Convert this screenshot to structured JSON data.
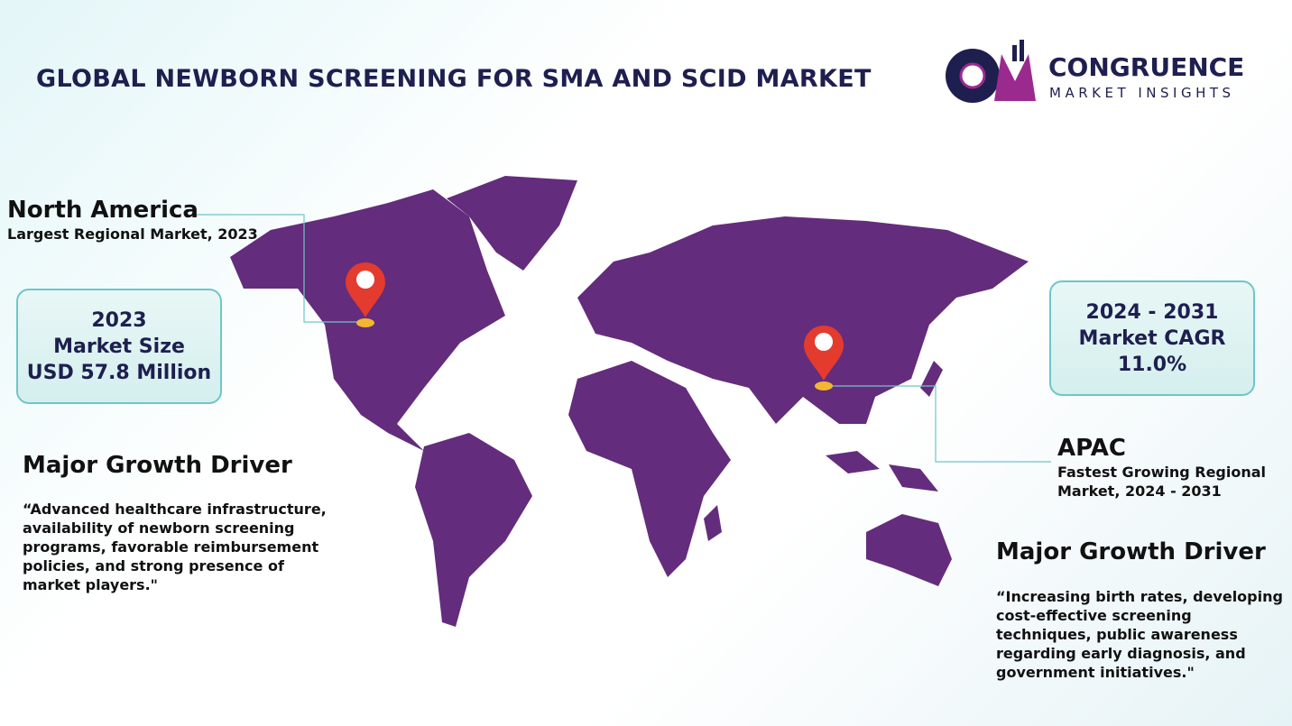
{
  "header": {
    "title": "GLOBAL NEWBORN SCREENING FOR SMA AND SCID MARKET",
    "logo_name": "CONGRUENCE",
    "logo_tagline": "MARKET INSIGHTS"
  },
  "north_america": {
    "region": "North America",
    "note": "Largest Regional Market, 2023"
  },
  "market_size": {
    "year": "2023",
    "label": "Market Size",
    "value": "USD 57.8 Million"
  },
  "cagr": {
    "period": "2024 - 2031",
    "label": "Market CAGR",
    "value": "11.0%"
  },
  "apac": {
    "region": "APAC",
    "note": "Fastest Growing Regional Market, 2024 - 2031"
  },
  "driver_left": {
    "heading": "Major Growth Driver",
    "text": "“Advanced healthcare infrastructure, availability of newborn screening programs, favorable reimbursement policies, and strong presence of market players.\""
  },
  "driver_right": {
    "heading": "Major Growth Driver",
    "text": "“Increasing birth rates, developing cost-effective screening techniques, public awareness regarding early diagnosis, and government initiatives.\""
  }
}
